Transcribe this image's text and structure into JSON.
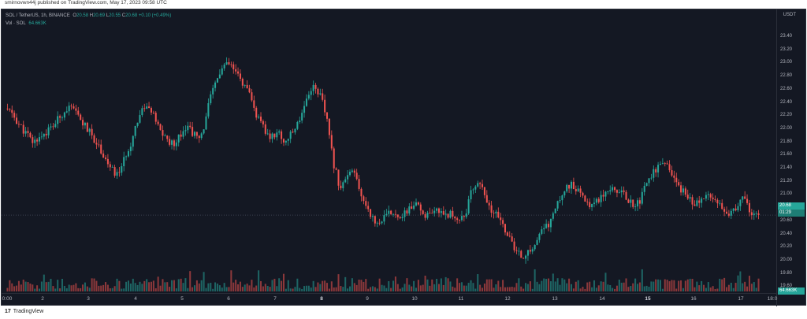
{
  "header": {
    "published_text": "smirnovwn44j published on TradingView.com, May 17, 2023 09:58 UTC"
  },
  "legend": {
    "symbol": "SOL / TetherUS, 1h, BINANCE",
    "o_label": "O",
    "o_value": "20.58",
    "h_label": "H",
    "h_value": "20.69",
    "l_label": "L",
    "l_value": "20.55",
    "c_label": "C",
    "c_value": "20.68",
    "change": "+0.10 (+0.49%)",
    "vol_label": "Vol · SOL",
    "vol_value": "64.663K"
  },
  "currency_label": "USDT",
  "y_axis_labels": [
    "23.40",
    "23.20",
    "23.00",
    "22.80",
    "22.60",
    "22.40",
    "22.20",
    "22.00",
    "21.80",
    "21.60",
    "21.40",
    "21.20",
    "21.00",
    "20.80",
    "20.60",
    "20.40",
    "20.20",
    "20.00",
    "19.80",
    "19.60"
  ],
  "x_axis_labels": [
    {
      "label": "0:00",
      "bold": false
    },
    {
      "label": "2",
      "bold": false
    },
    {
      "label": "3",
      "bold": false
    },
    {
      "label": "4",
      "bold": false
    },
    {
      "label": "5",
      "bold": false
    },
    {
      "label": "6",
      "bold": false
    },
    {
      "label": "7",
      "bold": false
    },
    {
      "label": "8",
      "bold": true
    },
    {
      "label": "9",
      "bold": false
    },
    {
      "label": "10",
      "bold": false
    },
    {
      "label": "11",
      "bold": false
    },
    {
      "label": "12",
      "bold": false
    },
    {
      "label": "13",
      "bold": false
    },
    {
      "label": "14",
      "bold": false
    },
    {
      "label": "15",
      "bold": true
    },
    {
      "label": "16",
      "bold": false
    },
    {
      "label": "17",
      "bold": false
    },
    {
      "label": "18:0",
      "bold": false
    }
  ],
  "price_badge": {
    "price": "20.68",
    "countdown": "01:29"
  },
  "volume_badge": "64.663K",
  "footer": {
    "logo_mark": "17",
    "logo_text": "TradingView"
  },
  "colors": {
    "up": "#26a69a",
    "down": "#ef5350",
    "background": "#141823",
    "grid": "#2a2e39"
  },
  "chart_data": {
    "type": "candlestick",
    "symbol": "SOL / TetherUS, 1h, BINANCE",
    "ylim": [
      19.5,
      23.5
    ],
    "close_series": [
      22.3,
      22.22,
      22.05,
      21.92,
      21.78,
      21.88,
      21.95,
      22.05,
      22.2,
      22.32,
      22.25,
      22.1,
      21.95,
      21.8,
      21.62,
      21.4,
      21.28,
      21.5,
      21.78,
      22.15,
      22.35,
      22.25,
      22.0,
      21.85,
      21.75,
      21.9,
      22.05,
      21.92,
      21.8,
      22.3,
      22.65,
      22.9,
      22.98,
      22.85,
      22.7,
      22.5,
      22.2,
      22.0,
      21.85,
      21.95,
      21.8,
      21.9,
      22.1,
      22.4,
      22.65,
      22.55,
      22.2,
      21.5,
      21.1,
      21.25,
      21.35,
      20.95,
      20.8,
      20.55,
      20.6,
      20.7,
      20.72,
      20.65,
      20.8,
      20.82,
      20.7,
      20.65,
      20.75,
      20.72,
      20.68,
      20.62,
      20.7,
      21.1,
      21.2,
      20.85,
      20.72,
      20.6,
      20.4,
      20.15,
      20.05,
      20.1,
      20.25,
      20.45,
      20.55,
      20.8,
      21.05,
      21.15,
      21.05,
      20.9,
      20.85,
      20.92,
      21.05,
      21.12,
      21.05,
      20.95,
      20.85,
      20.9,
      21.2,
      21.35,
      21.45,
      21.4,
      21.2,
      21.05,
      20.95,
      20.85,
      20.9,
      21.02,
      20.92,
      20.8,
      20.7,
      20.8,
      20.95,
      20.7,
      20.68
    ]
  }
}
